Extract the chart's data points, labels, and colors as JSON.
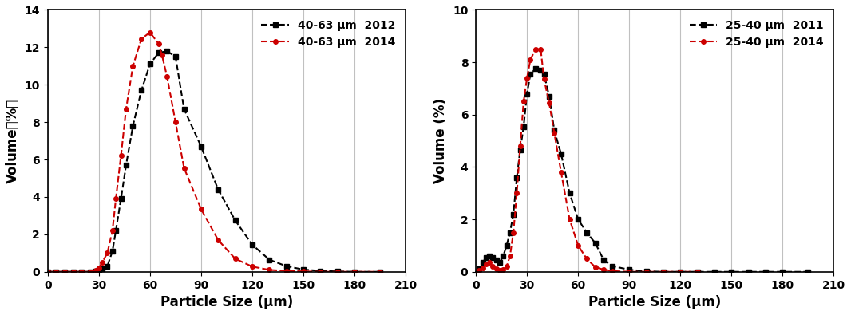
{
  "left": {
    "black_x": [
      0,
      5,
      10,
      15,
      20,
      25,
      28,
      30,
      32,
      35,
      38,
      40,
      43,
      46,
      50,
      55,
      60,
      65,
      70,
      75,
      80,
      90,
      100,
      110,
      120,
      130,
      140,
      150,
      160,
      170,
      180,
      195
    ],
    "black_y": [
      0,
      0,
      0,
      0,
      0,
      0,
      0.05,
      0.1,
      0.15,
      0.3,
      1.1,
      2.2,
      3.9,
      5.7,
      7.8,
      9.7,
      11.1,
      11.7,
      11.8,
      11.5,
      8.7,
      6.7,
      4.4,
      2.75,
      1.45,
      0.65,
      0.3,
      0.12,
      0.05,
      0.02,
      0.0,
      0.0
    ],
    "red_x": [
      0,
      5,
      10,
      15,
      20,
      25,
      28,
      30,
      32,
      35,
      38,
      40,
      43,
      46,
      50,
      55,
      60,
      65,
      67,
      70,
      75,
      80,
      90,
      100,
      110,
      120,
      130,
      140,
      150,
      160,
      170,
      180,
      195
    ],
    "red_y": [
      0,
      0,
      0,
      0,
      0,
      0,
      0.08,
      0.2,
      0.5,
      1.0,
      2.2,
      3.9,
      6.2,
      8.7,
      11.0,
      12.45,
      12.8,
      12.2,
      11.6,
      10.45,
      8.0,
      5.55,
      3.35,
      1.7,
      0.7,
      0.28,
      0.1,
      0.05,
      0.02,
      0.0,
      0.0,
      0.0,
      0.0
    ],
    "ylabel": "Volume（%）",
    "xlabel": "Particle Size (μm)",
    "ylim": [
      0,
      14
    ],
    "xlim": [
      0,
      210
    ],
    "yticks": [
      0,
      2,
      4,
      6,
      8,
      10,
      12,
      14
    ],
    "xticks": [
      0,
      30,
      60,
      90,
      120,
      150,
      180,
      210
    ],
    "legend1": "40-63 μm  2012",
    "legend2": "40-63 μm  2014"
  },
  "right": {
    "black_x": [
      0,
      2,
      4,
      6,
      8,
      10,
      12,
      14,
      16,
      18,
      20,
      22,
      24,
      26,
      28,
      30,
      32,
      35,
      38,
      40,
      43,
      46,
      50,
      55,
      60,
      65,
      70,
      75,
      80,
      90,
      100,
      110,
      120,
      130,
      140,
      150,
      160,
      170,
      180,
      195
    ],
    "black_y": [
      0,
      0.1,
      0.35,
      0.55,
      0.6,
      0.55,
      0.45,
      0.35,
      0.6,
      1.0,
      1.5,
      2.2,
      3.6,
      4.65,
      5.55,
      6.8,
      7.55,
      7.75,
      7.7,
      7.55,
      6.7,
      5.4,
      4.5,
      3.0,
      2.0,
      1.5,
      1.1,
      0.45,
      0.22,
      0.08,
      0.02,
      0.0,
      0.0,
      0.0,
      0.0,
      0.0,
      0.0,
      0.0,
      0.0,
      0.0
    ],
    "red_x": [
      0,
      2,
      4,
      6,
      8,
      10,
      12,
      14,
      16,
      18,
      20,
      22,
      24,
      26,
      28,
      30,
      32,
      35,
      38,
      40,
      43,
      46,
      50,
      55,
      60,
      65,
      70,
      75,
      80,
      90,
      100,
      110,
      120,
      130
    ],
    "red_y": [
      0,
      0.05,
      0.15,
      0.3,
      0.35,
      0.2,
      0.1,
      0.05,
      0.08,
      0.2,
      0.6,
      1.5,
      3.0,
      4.8,
      6.5,
      7.4,
      8.1,
      8.5,
      8.5,
      7.35,
      6.45,
      5.3,
      3.8,
      2.0,
      1.0,
      0.5,
      0.18,
      0.08,
      0.03,
      0.0,
      0.0,
      0.0,
      0.0,
      0.0
    ],
    "ylabel": "Volume (%)",
    "xlabel": "Particle Size (μm)",
    "ylim": [
      0,
      10
    ],
    "xlim": [
      0,
      210
    ],
    "yticks": [
      0,
      2,
      4,
      6,
      8,
      10
    ],
    "xticks": [
      0,
      30,
      60,
      90,
      120,
      150,
      180,
      210
    ],
    "legend1": "25-40 μm  2011",
    "legend2": "25-40 μm  2014"
  },
  "bg_color": "#ffffff",
  "grid_color": "#c0c0c0",
  "black_color": "#000000",
  "red_color": "#cc0000"
}
